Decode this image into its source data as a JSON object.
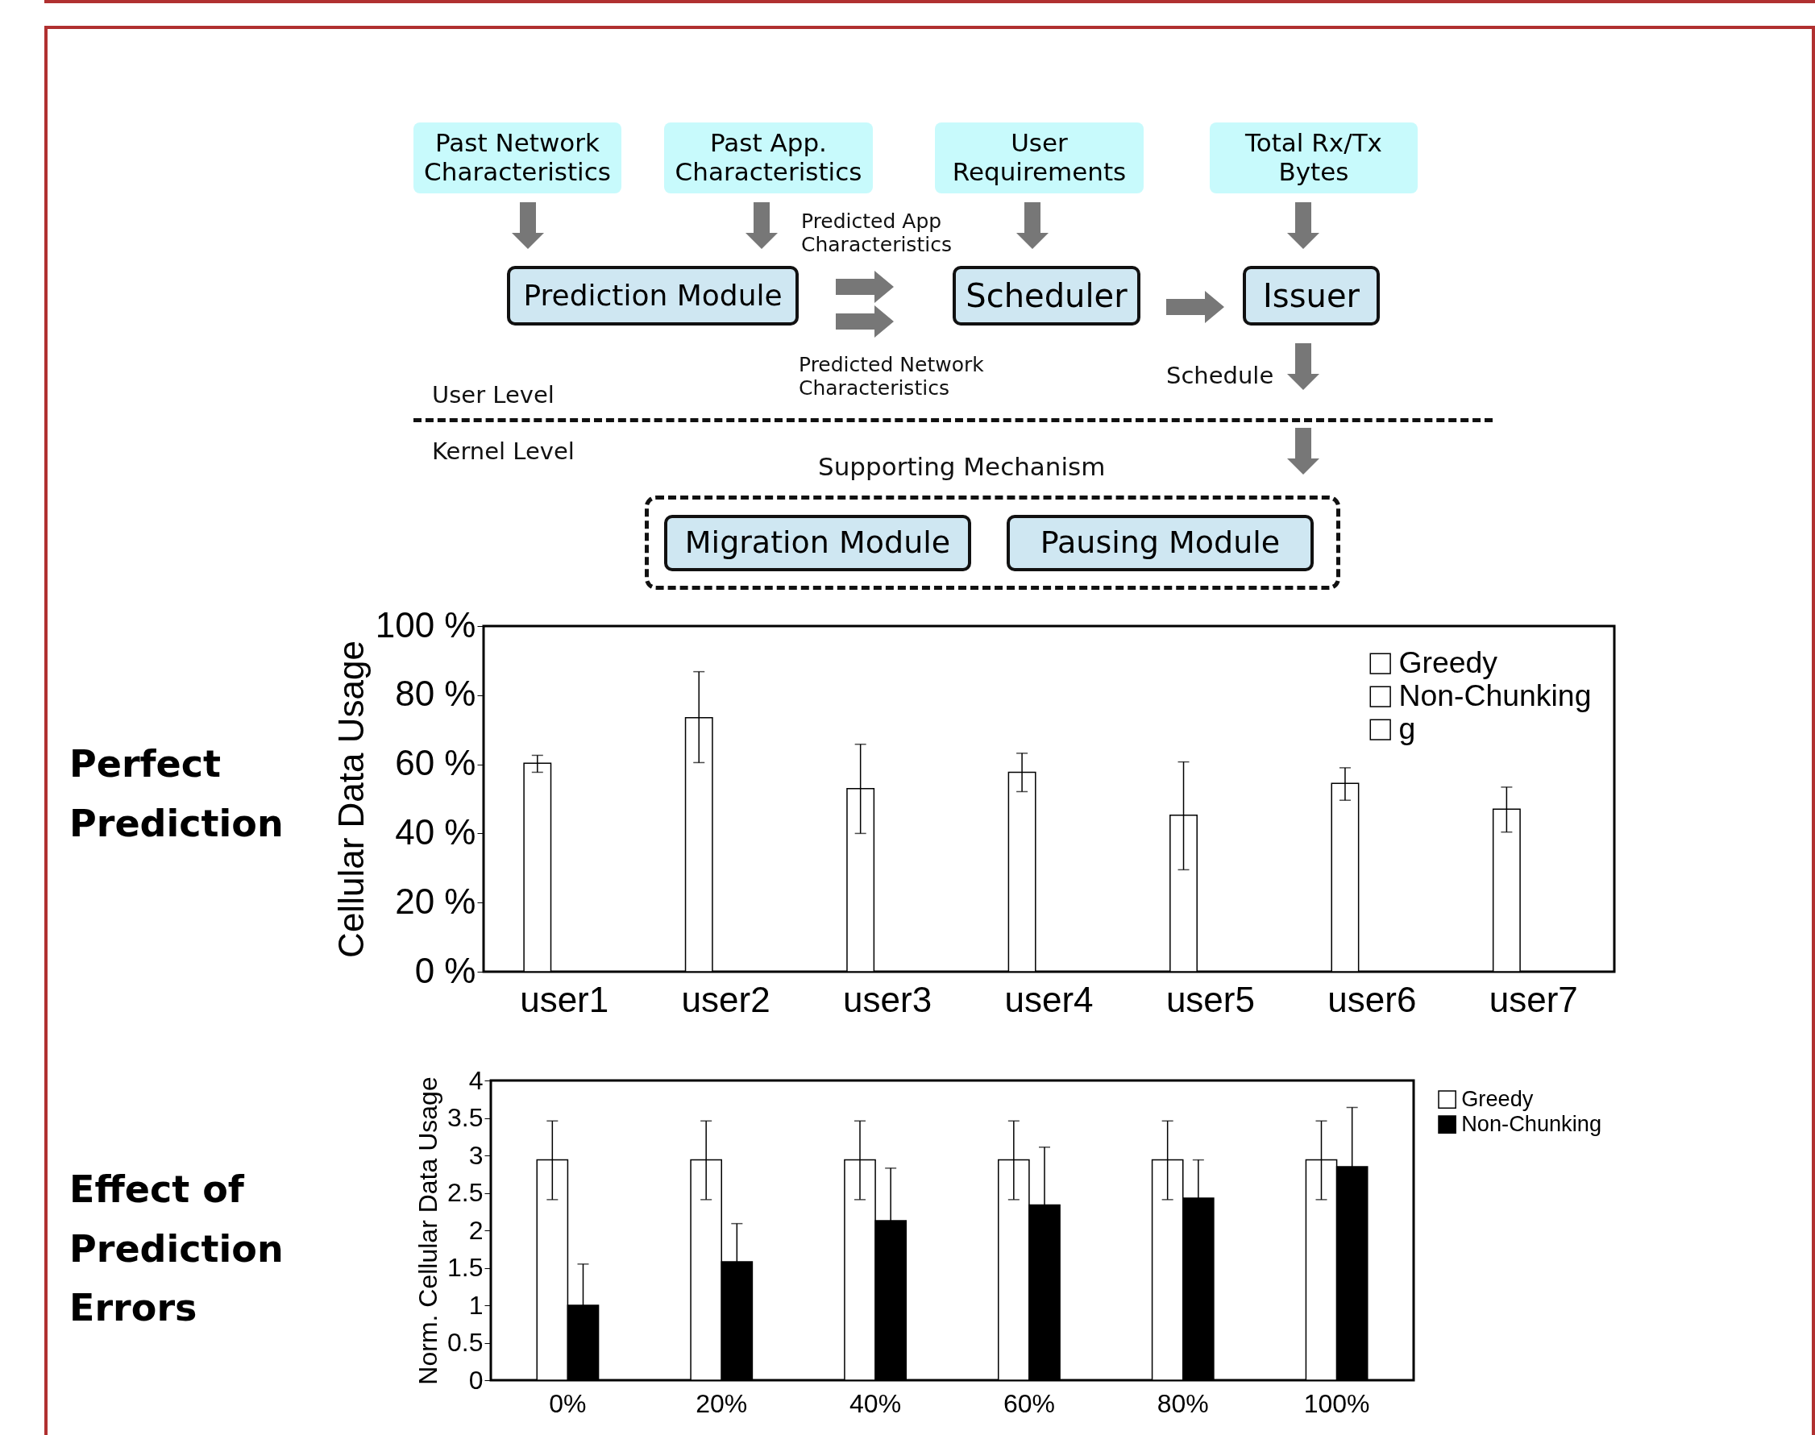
{
  "chart_data": [
    {
      "type": "other",
      "annotations": [
        "Past Network Characteristics",
        "Past App. Characteristics",
        "User Requirements",
        "Total Rx/Tx Bytes",
        "Predicted App Characteristics",
        "Prediction Module",
        "Scheduler",
        "Issuer",
        "Predicted Network Characteristics",
        "User Level",
        "Schedule",
        "Kernel Level",
        "Supporting Mechanism",
        "Migration Module",
        "Pausing Module"
      ]
    },
    {
      "type": "bar",
      "title": "Perfect Prediction",
      "ylabel": "Cellular Data Usage",
      "categories": [
        "user1",
        "user2",
        "user3",
        "user4",
        "user5",
        "user6",
        "user7"
      ],
      "series": [
        {
          "name": "Greedy",
          "color": "#ffffff",
          "values": [
            60.3,
            73.5,
            53,
            57.7,
            45.3,
            54.5,
            47
          ],
          "errors": [
            [
              57.7,
              62.6
            ],
            [
              60.5,
              86.8
            ],
            [
              40,
              65.8
            ],
            [
              52.1,
              63.2
            ],
            [
              29.5,
              60.7
            ],
            [
              49.6,
              59
            ],
            [
              40.4,
              53.4
            ]
          ]
        },
        {
          "name": "Non-Chunking",
          "color": "#ffffff",
          "values": [
            null,
            null,
            null,
            null,
            null,
            null,
            null
          ]
        },
        {
          "name": "g",
          "color": "#ffffff",
          "values": [
            null,
            null,
            null,
            null,
            null,
            null,
            null
          ]
        }
      ],
      "ylim": [
        0,
        100
      ],
      "yticks": [
        {
          "value": 0,
          "label": "0 %"
        },
        {
          "value": 20,
          "label": "20 %"
        },
        {
          "value": 40,
          "label": "40 %"
        },
        {
          "value": 60,
          "label": "60 %"
        },
        {
          "value": 80,
          "label": "80 %"
        },
        {
          "value": 100,
          "label": "100 %"
        }
      ],
      "legend": "top right",
      "grid": false
    },
    {
      "type": "bar",
      "title": "Effect of Prediction Errors",
      "ylabel": "Norm. Cellular Data Usage",
      "categories": [
        "0%",
        "20%",
        "40%",
        "60%",
        "80%",
        "100%"
      ],
      "series": [
        {
          "name": "Greedy",
          "color": "#ffffff",
          "values": [
            2.94,
            2.94,
            2.94,
            2.94,
            2.94,
            2.94
          ],
          "errors": [
            [
              2.41,
              3.46
            ],
            [
              2.41,
              3.46
            ],
            [
              2.41,
              3.46
            ],
            [
              2.41,
              3.46
            ],
            [
              2.41,
              3.46
            ],
            [
              2.41,
              3.46
            ]
          ]
        },
        {
          "name": "Non-Chunking",
          "color": "#000000",
          "values": [
            1.0,
            1.58,
            2.13,
            2.34,
            2.43,
            2.85
          ],
          "errors": [
            0.55,
            0.51,
            0.7,
            0.77,
            0.51,
            0.79
          ]
        }
      ],
      "ylim": [
        0,
        4
      ],
      "yticks": [
        0,
        0.5,
        1,
        1.5,
        2,
        2.5,
        3,
        3.5,
        4
      ],
      "legend": "right",
      "grid": false
    }
  ]
}
